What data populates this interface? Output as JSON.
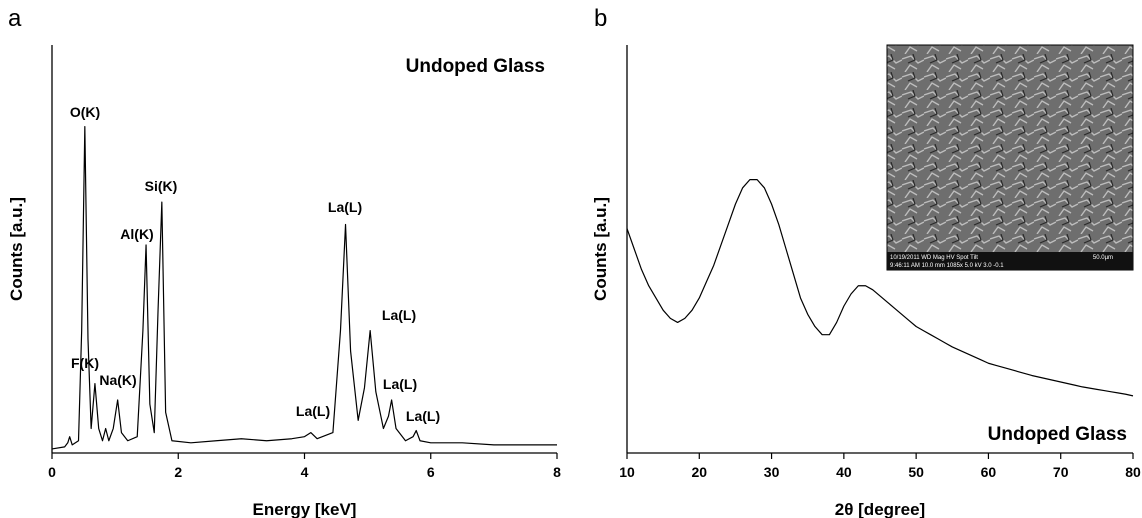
{
  "chart_data": [
    {
      "type": "line",
      "panel_label": "a",
      "title": "Undoped Glass",
      "xlabel": "Energy [keV]",
      "ylabel": "Counts [a.u.]",
      "xlim": [
        0,
        8
      ],
      "xticks": [
        0,
        2,
        4,
        6,
        8
      ],
      "ylim": [
        0,
        100
      ],
      "color": "#000000",
      "x": [
        0,
        0.2,
        0.25,
        0.28,
        0.32,
        0.42,
        0.47,
        0.52,
        0.57,
        0.62,
        0.68,
        0.74,
        0.8,
        0.85,
        0.9,
        0.97,
        1.04,
        1.1,
        1.2,
        1.35,
        1.44,
        1.49,
        1.55,
        1.62,
        1.68,
        1.74,
        1.8,
        1.9,
        2.2,
        2.6,
        3.0,
        3.4,
        3.8,
        4.0,
        4.1,
        4.2,
        4.45,
        4.57,
        4.65,
        4.73,
        4.85,
        4.95,
        5.04,
        5.13,
        5.25,
        5.33,
        5.38,
        5.45,
        5.6,
        5.72,
        5.77,
        5.83,
        6.0,
        6.5,
        7.0,
        7.5,
        8.0
      ],
      "values": [
        1,
        1.5,
        2.5,
        4,
        2,
        3,
        30,
        80,
        28,
        6,
        17,
        6,
        3,
        6,
        3,
        6,
        13,
        5,
        3,
        4,
        30,
        51,
        12,
        5,
        35,
        61.5,
        10,
        3,
        2.5,
        3,
        3.5,
        3,
        3.5,
        4,
        5,
        3.5,
        5,
        30,
        56,
        25,
        8,
        16,
        30,
        15,
        6,
        9,
        13,
        6,
        3,
        4,
        5.5,
        3,
        2.5,
        2.5,
        2,
        2,
        2
      ],
      "annotations": [
        "O(K)",
        "F(K)",
        "Na(K)",
        "Al(K)",
        "Si(K)",
        "La(L)",
        "La(L)",
        "La(L)",
        "La(L)",
        "La(L)"
      ]
    },
    {
      "type": "line",
      "panel_label": "b",
      "title": "Undoped Glass",
      "xlabel": "2θ [degree]",
      "ylabel": "Counts [a.u.]",
      "xlim": [
        10,
        80
      ],
      "xticks": [
        10,
        20,
        30,
        40,
        50,
        60,
        70,
        80
      ],
      "ylim": [
        0,
        100
      ],
      "color": "#000000",
      "x": [
        10,
        11,
        12,
        13,
        14,
        15,
        16,
        17,
        18,
        19,
        20,
        21,
        22,
        23,
        24,
        25,
        26,
        27,
        28,
        29,
        30,
        31,
        32,
        33,
        34,
        35,
        36,
        37,
        38,
        39,
        40,
        41,
        42,
        43,
        44,
        45,
        46,
        47,
        48,
        49,
        50,
        51,
        52,
        53,
        54,
        55,
        56,
        57,
        58,
        59,
        60,
        61,
        62,
        63,
        64,
        65,
        66,
        67,
        68,
        69,
        70,
        71,
        72,
        73,
        74,
        75,
        76,
        77,
        78,
        79,
        80
      ],
      "values": [
        55,
        50,
        45,
        41,
        38,
        35,
        33,
        32,
        33,
        35,
        38,
        42,
        46,
        51,
        56,
        61,
        65,
        67,
        67,
        65,
        61,
        56,
        50,
        44,
        38,
        34,
        31,
        29,
        29,
        32,
        36,
        39,
        41,
        41,
        40,
        38.5,
        37,
        35.5,
        34,
        32.5,
        31,
        30,
        29,
        28,
        27,
        26,
        25.2,
        24.4,
        23.6,
        22.8,
        22,
        21.5,
        21,
        20.5,
        20,
        19.5,
        19,
        18.6,
        18.2,
        17.8,
        17.4,
        17,
        16.6,
        16.2,
        15.9,
        15.6,
        15.3,
        15,
        14.7,
        14.4,
        14
      ],
      "inset_text": [
        "10/19/2011  WD  Mag  HV  Spot  Tilt",
        "9:46:11 AM  10.0 mm  1085x  5.0 kV  3.0  -0.1",
        "50.0µm"
      ]
    }
  ]
}
